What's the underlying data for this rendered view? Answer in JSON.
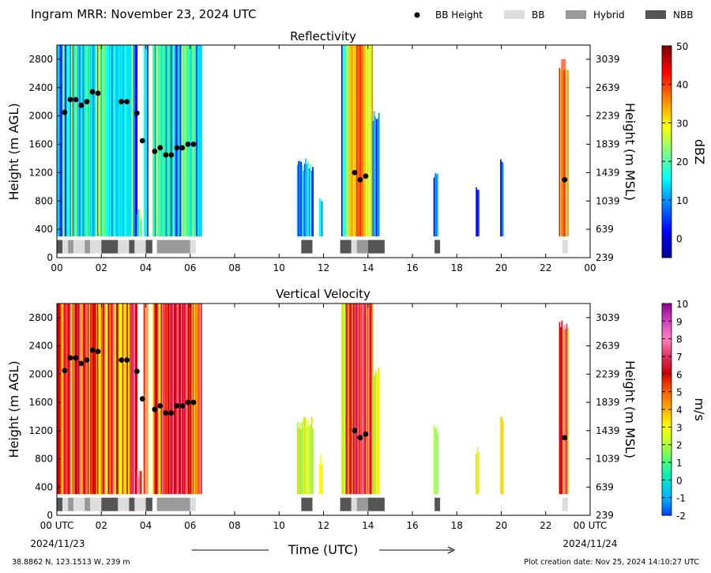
{
  "header": {
    "title": "Ingram MRR:  November 23, 2024 UTC",
    "legend": [
      {
        "label": "BB Height",
        "kind": "dot",
        "color": "#000000"
      },
      {
        "label": "BB",
        "kind": "box",
        "color": "#dddddd"
      },
      {
        "label": "Hybrid",
        "kind": "box",
        "color": "#999999"
      },
      {
        "label": "NBB",
        "kind": "box",
        "color": "#555555"
      }
    ]
  },
  "footer": {
    "location": "38.8862 N, 123.1513 W, 239 m",
    "creation": "Plot creation date: Nov 25, 2024 14:10:27 UTC",
    "start_date": "2024/11/23",
    "end_date": "2024/11/24",
    "xlabel": "Time (UTC)"
  },
  "chart_data": [
    {
      "type": "heatmap",
      "title": "Reflectivity",
      "xlabel": "",
      "ylabel": "Height (m AGL)",
      "ylabel_right": "Height (m MSL)",
      "xlim": [
        0,
        24
      ],
      "ylim": [
        0,
        3000
      ],
      "xticks": [
        "00",
        "02",
        "04",
        "06",
        "08",
        "10",
        "12",
        "14",
        "16",
        "18",
        "20",
        "22",
        "00"
      ],
      "yticks": [
        0,
        400,
        800,
        1200,
        1600,
        2000,
        2400,
        2800
      ],
      "yticks_right": [
        "239",
        "639",
        "1039",
        "1439",
        "1839",
        "2239",
        "2639",
        "3039"
      ],
      "colorbar": {
        "label": "dBZ",
        "ticks": [
          "0",
          "10",
          "20",
          "30",
          "40",
          "50"
        ],
        "vmin": -5,
        "vmax": 50
      },
      "grid": false
    },
    {
      "type": "heatmap",
      "title": "Vertical Velocity",
      "xlabel": "Time (UTC)",
      "ylabel": "Height (m AGL)",
      "ylabel_right": "Height (m MSL)",
      "xlim": [
        0,
        24
      ],
      "ylim": [
        0,
        3000
      ],
      "xticks": [
        "00 UTC",
        "02",
        "04",
        "06",
        "08",
        "10",
        "12",
        "14",
        "16",
        "18",
        "20",
        "22",
        "00 UTC"
      ],
      "yticks": [
        0,
        400,
        800,
        1200,
        1600,
        2000,
        2400,
        2800
      ],
      "yticks_right": [
        "239",
        "639",
        "1039",
        "1439",
        "1839",
        "2239",
        "2639",
        "3039"
      ],
      "colorbar": {
        "label": "m/s",
        "ticks": [
          "-2",
          "-1",
          "0",
          "1",
          "2",
          "3",
          "4",
          "5",
          "6",
          "7",
          "8",
          "9",
          "10"
        ],
        "vmin": -2,
        "vmax": 10
      },
      "grid": false
    }
  ],
  "shared_series": {
    "echo_segments": [
      {
        "start": 0.0,
        "end": 3.6,
        "top": 3000,
        "z": "mix"
      },
      {
        "start": 3.6,
        "end": 3.8,
        "top": 700,
        "z": "mix"
      },
      {
        "start": 3.9,
        "end": 4.1,
        "top": 3000,
        "z": "mix"
      },
      {
        "start": 4.3,
        "end": 6.5,
        "top": 3000,
        "z": "mix"
      },
      {
        "start": 10.8,
        "end": 11.5,
        "top": 1400,
        "z": "low"
      },
      {
        "start": 11.8,
        "end": 11.95,
        "top": 900,
        "z": "low"
      },
      {
        "start": 12.8,
        "end": 13.0,
        "top": 3000,
        "z": "low"
      },
      {
        "start": 13.0,
        "end": 14.2,
        "top": 3000,
        "z": "core"
      },
      {
        "start": 14.2,
        "end": 14.5,
        "top": 2100,
        "z": "low"
      },
      {
        "start": 16.95,
        "end": 17.15,
        "top": 1300,
        "z": "low"
      },
      {
        "start": 18.85,
        "end": 19.0,
        "top": 1000,
        "z": "low"
      },
      {
        "start": 19.95,
        "end": 20.1,
        "top": 1500,
        "z": "low"
      },
      {
        "start": 22.6,
        "end": 23.0,
        "top": 2800,
        "z": "core"
      }
    ],
    "bb_height": {
      "x": [
        0.35,
        0.6,
        0.85,
        1.1,
        1.35,
        1.6,
        1.85,
        2.9,
        3.15,
        3.6,
        3.85,
        4.4,
        4.65,
        4.9,
        5.15,
        5.4,
        5.65,
        5.9,
        6.15,
        13.4,
        13.65,
        13.9,
        22.85
      ],
      "y": [
        2050,
        2230,
        2230,
        2150,
        2200,
        2340,
        2320,
        2200,
        2200,
        2040,
        1650,
        1500,
        1550,
        1450,
        1450,
        1550,
        1550,
        1600,
        1600,
        1200,
        1100,
        1150,
        1100
      ]
    },
    "bb_type": [
      {
        "start": 0.0,
        "end": 0.25,
        "type": "NBB"
      },
      {
        "start": 0.25,
        "end": 0.5,
        "type": "BB"
      },
      {
        "start": 0.5,
        "end": 0.75,
        "type": "Hybrid"
      },
      {
        "start": 0.75,
        "end": 1.25,
        "type": "BB"
      },
      {
        "start": 1.25,
        "end": 1.5,
        "type": "Hybrid"
      },
      {
        "start": 1.5,
        "end": 2.0,
        "type": "BB"
      },
      {
        "start": 2.0,
        "end": 2.75,
        "type": "NBB"
      },
      {
        "start": 2.75,
        "end": 3.25,
        "type": "BB"
      },
      {
        "start": 3.25,
        "end": 3.5,
        "type": "NBB"
      },
      {
        "start": 3.5,
        "end": 4.0,
        "type": "BB"
      },
      {
        "start": 4.0,
        "end": 4.3,
        "type": "NBB"
      },
      {
        "start": 4.5,
        "end": 6.0,
        "type": "Hybrid"
      },
      {
        "start": 6.0,
        "end": 6.25,
        "type": "BB"
      },
      {
        "start": 11.0,
        "end": 11.5,
        "type": "NBB"
      },
      {
        "start": 12.75,
        "end": 13.25,
        "type": "NBB"
      },
      {
        "start": 13.25,
        "end": 13.5,
        "type": "BB"
      },
      {
        "start": 13.5,
        "end": 14.0,
        "type": "Hybrid"
      },
      {
        "start": 14.0,
        "end": 14.75,
        "type": "NBB"
      },
      {
        "start": 17.0,
        "end": 17.25,
        "type": "NBB"
      },
      {
        "start": 22.75,
        "end": 23.0,
        "type": "BB"
      }
    ]
  }
}
